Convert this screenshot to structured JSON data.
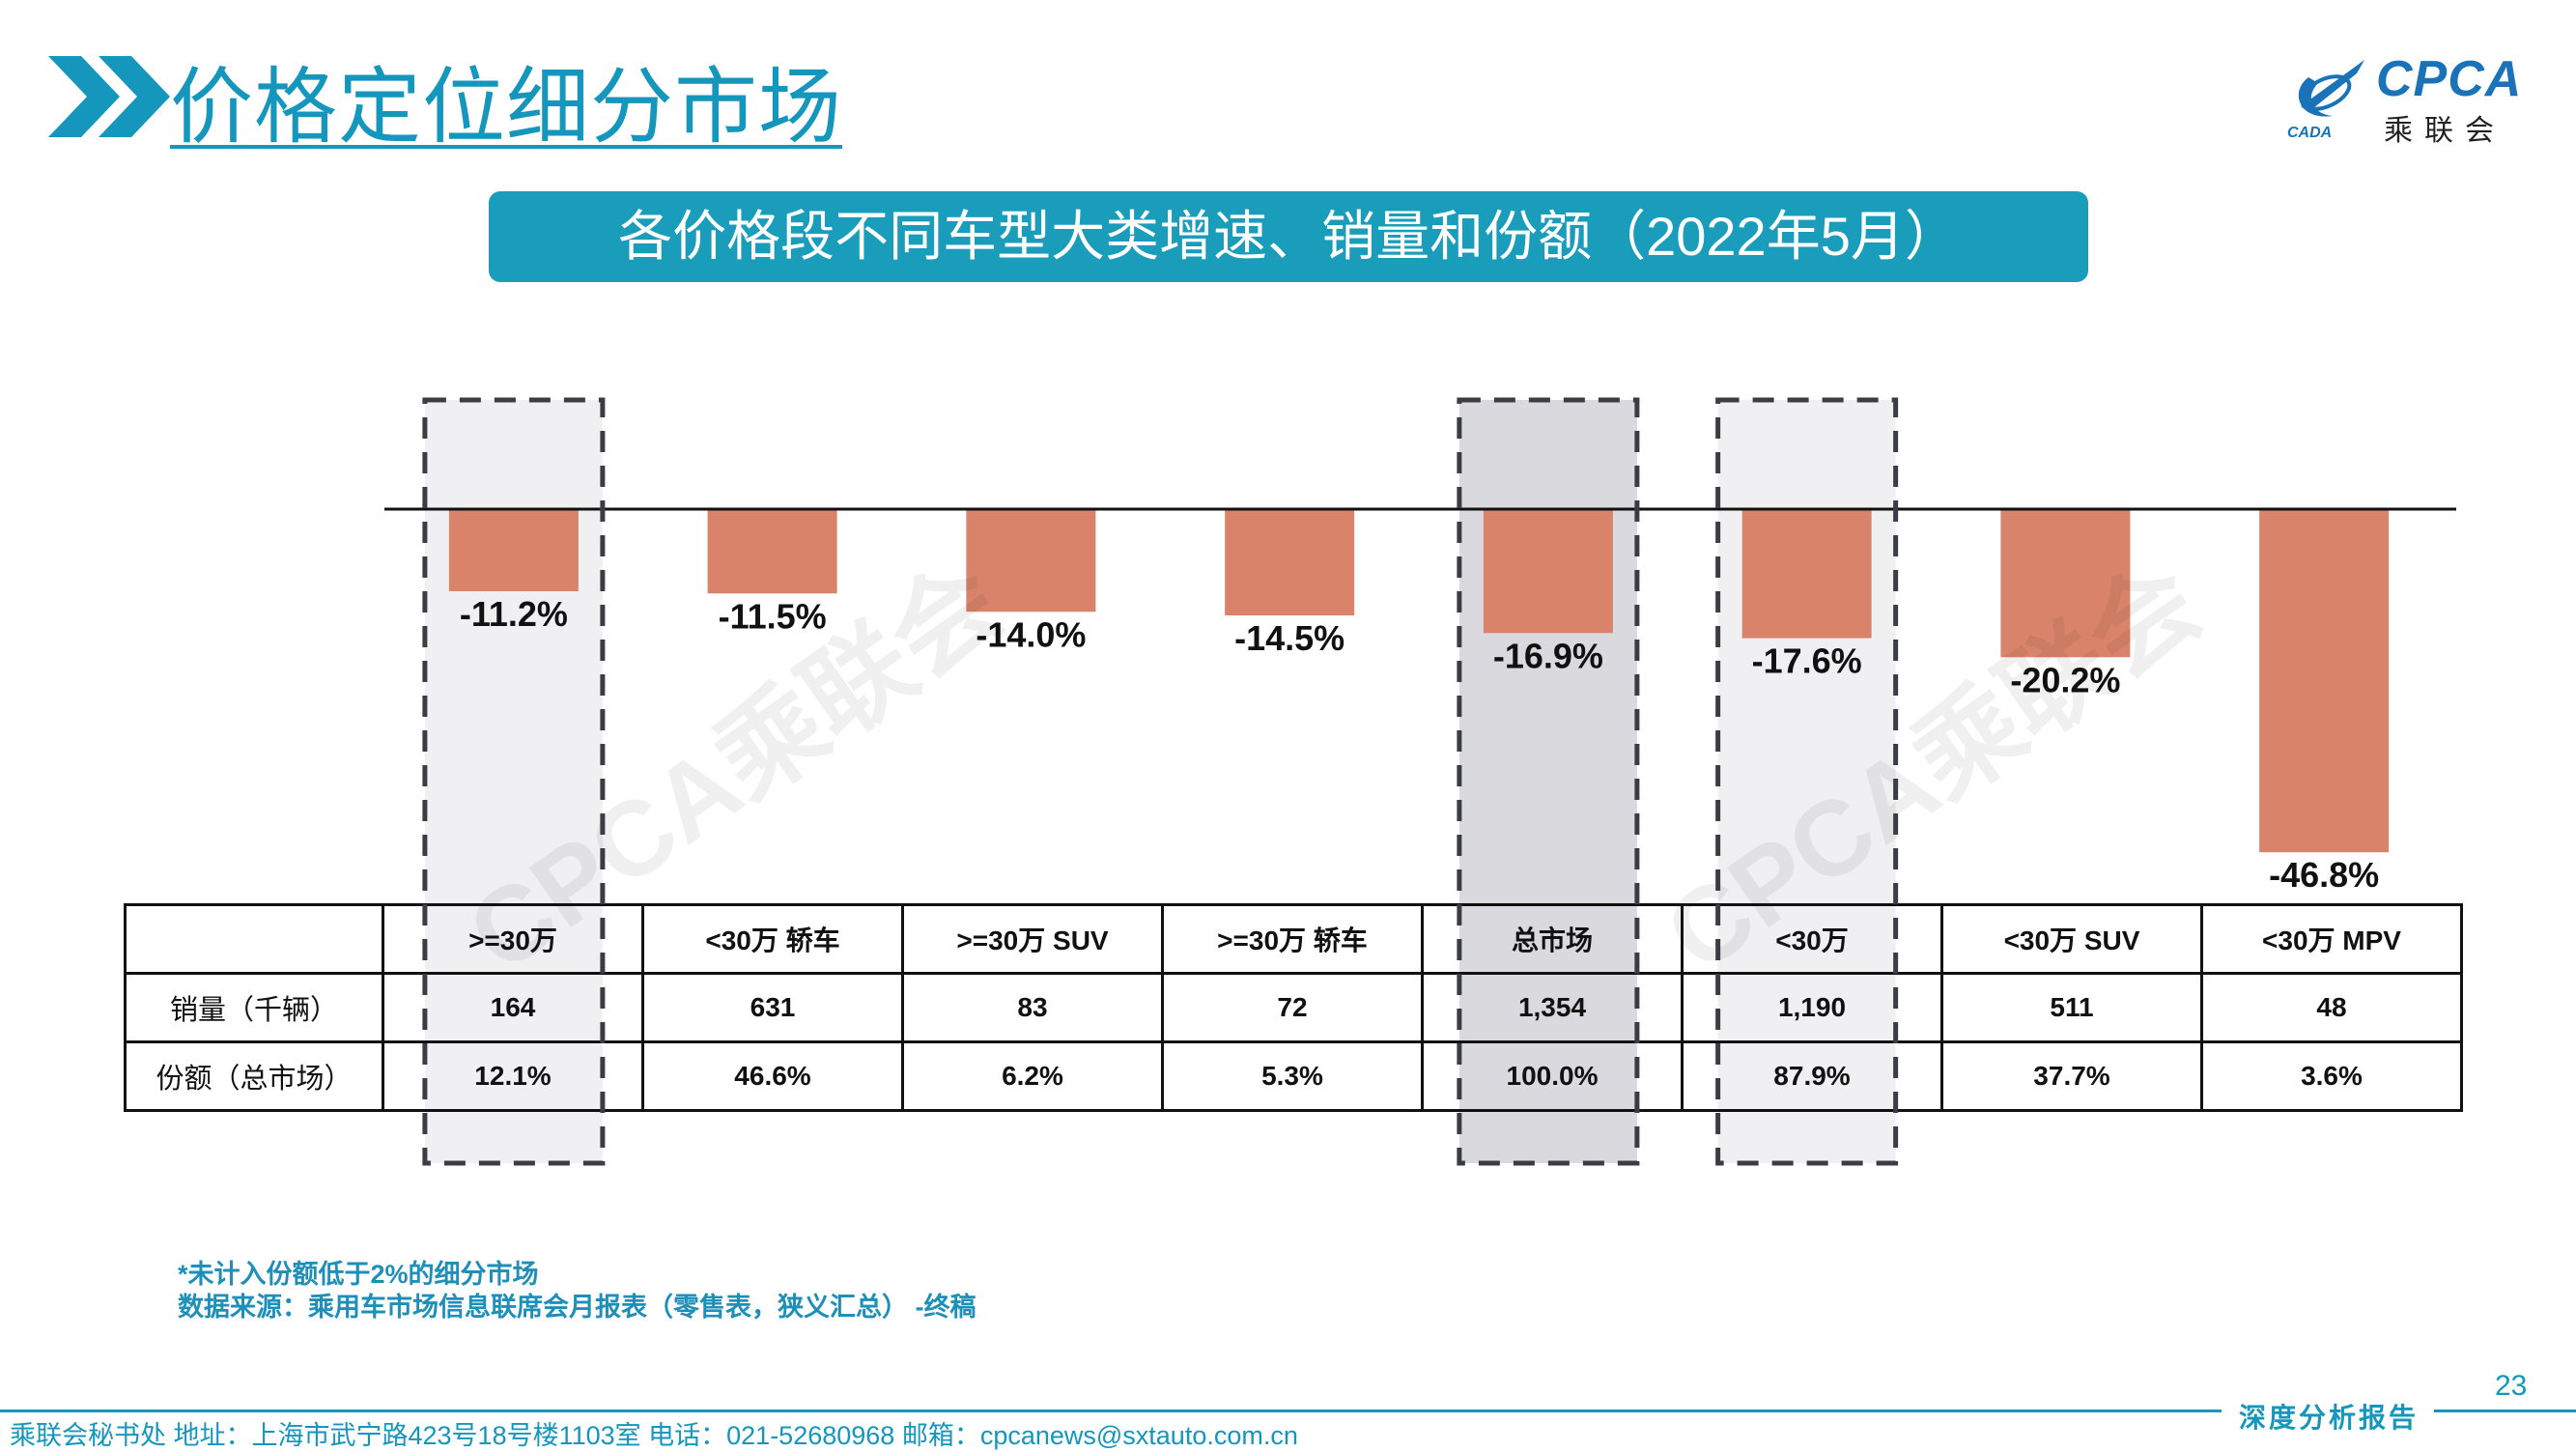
{
  "header": {
    "title": "价格定位细分市场",
    "logo_text": "CPCA",
    "logo_cn": "乘联会",
    "logo_small": "CADA"
  },
  "banner": {
    "text": "各价格段不同车型大类增速、销量和份额（2022年5月）"
  },
  "watermark": "CPCA乘联会",
  "colors": {
    "accent": "#1596bd",
    "banner": "#1a9cbb",
    "bar": "#d9846a",
    "highlight_fill": "#d9d9de",
    "light_fill": "#f0f0f2"
  },
  "chart_data": {
    "type": "bar",
    "categories": [
      ">=30万",
      "<30万 轿车",
      ">=30万 SUV",
      ">=30万 轿车",
      "总市场",
      "<30万",
      "<30万 SUV",
      "<30万 MPV"
    ],
    "values": [
      -11.2,
      -11.5,
      -14.0,
      -14.5,
      -16.9,
      -17.6,
      -20.2,
      -46.8
    ],
    "value_labels": [
      "-11.2%",
      "-11.5%",
      "-14.0%",
      "-14.5%",
      "-16.9%",
      "-17.6%",
      "-20.2%",
      "-46.8%"
    ],
    "unit": "%",
    "ylim": [
      -50,
      0
    ],
    "highlighted": [
      ">=30万",
      "总市场",
      "<30万"
    ],
    "grid": false
  },
  "table": {
    "row_heads": [
      "销量（千辆）",
      "份额（总市场）"
    ],
    "categories": [
      ">=30万",
      "<30万 轿车",
      ">=30万 SUV",
      ">=30万 轿车",
      "总市场",
      "<30万",
      "<30万 SUV",
      "<30万 MPV"
    ],
    "sales": [
      "164",
      "631",
      "83",
      "72",
      "1,354",
      "1,190",
      "511",
      "48"
    ],
    "share": [
      "12.1%",
      "46.6%",
      "6.2%",
      "5.3%",
      "100.0%",
      "87.9%",
      "37.7%",
      "3.6%"
    ]
  },
  "notes": {
    "line1": "*未计入份额低于2%的细分市场",
    "line2": "数据来源：乘用车市场信息联席会月报表（零售表，狭义汇总） -终稿"
  },
  "footer": {
    "text": "乘联会秘书处   地址：上海市武宁路423号18号楼1103室   电话：021-52680968   邮箱：cpcanews@sxtauto.com.cn",
    "tag": "深度分析报告",
    "page_number": "23"
  }
}
